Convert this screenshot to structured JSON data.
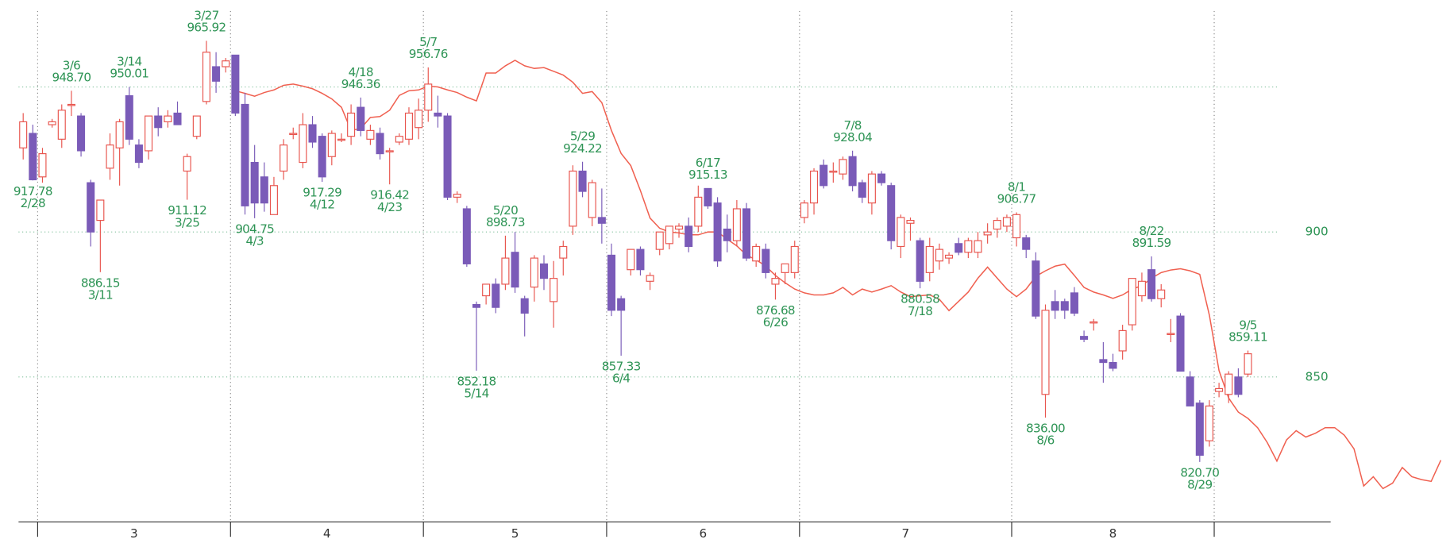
{
  "chart_data": {
    "type": "candlestick",
    "up_color": "#e8554e",
    "down_color": "#7a5bb8",
    "line_color": "#f06050",
    "annotation_color": "#2e9455",
    "ylim": [
      800,
      980
    ],
    "yticks": [
      850,
      900
    ],
    "gridlines": [
      850,
      900,
      950
    ],
    "categories": [
      "3",
      "4",
      "5",
      "6",
      "7",
      "8"
    ],
    "candles": [
      [
        929,
        941,
        925,
        938
      ],
      [
        934,
        937,
        917.78,
        918
      ],
      [
        919,
        929,
        917,
        927
      ],
      [
        937,
        939,
        936,
        938
      ],
      [
        932,
        944,
        929,
        942
      ],
      [
        944,
        948.7,
        940,
        944
      ],
      [
        940,
        941,
        926,
        928
      ],
      [
        917,
        918,
        895,
        900
      ],
      [
        904,
        911,
        886.15,
        911
      ],
      [
        922,
        934,
        918,
        930
      ],
      [
        929,
        939,
        916,
        938
      ],
      [
        947,
        950.01,
        930,
        932
      ],
      [
        930,
        932,
        922,
        924
      ],
      [
        928,
        940,
        925,
        940
      ],
      [
        940,
        943,
        933,
        936
      ],
      [
        938,
        942,
        936,
        940
      ],
      [
        941,
        945,
        937,
        937
      ],
      [
        921,
        927,
        911.12,
        926
      ],
      [
        933,
        940,
        932,
        940
      ],
      [
        945,
        965.92,
        944,
        962
      ],
      [
        957,
        962,
        948,
        952
      ],
      [
        957,
        960,
        955,
        959
      ],
      [
        961,
        961,
        940,
        941
      ],
      [
        944,
        948,
        906,
        909
      ],
      [
        924,
        930,
        904.75,
        910
      ],
      [
        919,
        924,
        907,
        910
      ],
      [
        906,
        919,
        906,
        916
      ],
      [
        921,
        932,
        918,
        930
      ],
      [
        934,
        936,
        932,
        934
      ],
      [
        924,
        941,
        922,
        937
      ],
      [
        937,
        940,
        929,
        931
      ],
      [
        933,
        934,
        917.29,
        919
      ],
      [
        926,
        935,
        923,
        934
      ],
      [
        932,
        934,
        931,
        932
      ],
      [
        933,
        944,
        930,
        941
      ],
      [
        943,
        946.36,
        933,
        935
      ],
      [
        932,
        937,
        930,
        935
      ],
      [
        934,
        936,
        925,
        927
      ],
      [
        928,
        929,
        916.42,
        928
      ],
      [
        931,
        934,
        930,
        933
      ],
      [
        932,
        943,
        930,
        941
      ],
      [
        936,
        946,
        932,
        942
      ],
      [
        942,
        956.76,
        938,
        951
      ],
      [
        941,
        947,
        936,
        940
      ],
      [
        940,
        941,
        911,
        912
      ],
      [
        912,
        914,
        910,
        913
      ],
      [
        908,
        909,
        888,
        889
      ],
      [
        875,
        876,
        852.18,
        874
      ],
      [
        878,
        882,
        875,
        882
      ],
      [
        882,
        884,
        872,
        874
      ],
      [
        882,
        898.73,
        880,
        891
      ],
      [
        893,
        900,
        879,
        881
      ],
      [
        877,
        878,
        864,
        872
      ],
      [
        881,
        892,
        876,
        891
      ],
      [
        889,
        892,
        880,
        884
      ],
      [
        876,
        890,
        867,
        884
      ],
      [
        891,
        897,
        885,
        895
      ],
      [
        902,
        923,
        899,
        921
      ],
      [
        921,
        924.22,
        912,
        914
      ],
      [
        905,
        918,
        902,
        917
      ],
      [
        905,
        915,
        896,
        903
      ],
      [
        892,
        896,
        871,
        873
      ],
      [
        877,
        878,
        857.33,
        873
      ],
      [
        887,
        894,
        885,
        894
      ],
      [
        894,
        895,
        885,
        887
      ],
      [
        883,
        886,
        880,
        885
      ],
      [
        894,
        900,
        892,
        900
      ],
      [
        896,
        902,
        894,
        902
      ],
      [
        901,
        903,
        898,
        902
      ],
      [
        902,
        905,
        893,
        895
      ],
      [
        902,
        916,
        900,
        912
      ],
      [
        915,
        915.13,
        908,
        909
      ],
      [
        910,
        912,
        888,
        890
      ],
      [
        901,
        906,
        893,
        897
      ],
      [
        897,
        911,
        895,
        908
      ],
      [
        908,
        910,
        890,
        891
      ],
      [
        890,
        896,
        888,
        895
      ],
      [
        894,
        896,
        884,
        886
      ],
      [
        882,
        886,
        876.68,
        884
      ],
      [
        886,
        889,
        882,
        889
      ],
      [
        886,
        897,
        884,
        895
      ],
      [
        905,
        911,
        903,
        910
      ],
      [
        910,
        922,
        906,
        921
      ],
      [
        923,
        925,
        915,
        916
      ],
      [
        921,
        924,
        917,
        921
      ],
      [
        920,
        926,
        918,
        925
      ],
      [
        926,
        928.04,
        914,
        916
      ],
      [
        917,
        918,
        910,
        912
      ],
      [
        910,
        921,
        906,
        920
      ],
      [
        920,
        921,
        916,
        917
      ],
      [
        916,
        917,
        894,
        897
      ],
      [
        895,
        906,
        891,
        905
      ],
      [
        903,
        905,
        897,
        904
      ],
      [
        897,
        898,
        880.58,
        883
      ],
      [
        886,
        898,
        883,
        895
      ],
      [
        890,
        896,
        887,
        894
      ],
      [
        891,
        893,
        889,
        892
      ],
      [
        896,
        898,
        892,
        893
      ],
      [
        893,
        898,
        891,
        897
      ],
      [
        893,
        900,
        891,
        897
      ],
      [
        899,
        903,
        896,
        900
      ],
      [
        901,
        905,
        898,
        904
      ],
      [
        902,
        906,
        900,
        905
      ],
      [
        898,
        906.77,
        895,
        906
      ],
      [
        898,
        899,
        891,
        894
      ],
      [
        890,
        893,
        870,
        871
      ],
      [
        844,
        875,
        836,
        873
      ],
      [
        876,
        880,
        870,
        873
      ],
      [
        876,
        877,
        870,
        873
      ],
      [
        879,
        881,
        871,
        872
      ],
      [
        864,
        866,
        862,
        863
      ],
      [
        869,
        870,
        866,
        869
      ],
      [
        856,
        862,
        848,
        855
      ],
      [
        855,
        858,
        852,
        853
      ],
      [
        859,
        868,
        856,
        866
      ],
      [
        868,
        884,
        866,
        884
      ],
      [
        878,
        886,
        876,
        883
      ],
      [
        887,
        891.59,
        876,
        877
      ],
      [
        877,
        882,
        874,
        880
      ],
      [
        865,
        870,
        862,
        865
      ],
      [
        871,
        872,
        852,
        852
      ],
      [
        850,
        852,
        840,
        840
      ],
      [
        841,
        842,
        820.7,
        823
      ],
      [
        828,
        842,
        826,
        840
      ],
      [
        845,
        848,
        843,
        846
      ],
      [
        844,
        852,
        841,
        851
      ],
      [
        850,
        853,
        843,
        844
      ],
      [
        851,
        859.11,
        850,
        858
      ]
    ],
    "line": [
      null,
      null,
      null,
      null,
      null,
      null,
      null,
      null,
      null,
      null,
      null,
      null,
      null,
      null,
      null,
      null,
      null,
      null,
      null,
      null,
      null,
      null,
      948.7,
      947.8,
      946.8,
      948.1,
      949.0,
      950.6,
      951.0,
      950.3,
      949.4,
      947.8,
      945.9,
      943.0,
      935.0,
      935.7,
      939.5,
      939.8,
      942.0,
      947.1,
      948.7,
      949.0,
      950.3,
      950.0,
      949.0,
      948.1,
      946.5,
      945.2,
      954.8,
      954.8,
      957.3,
      959.2,
      957.3,
      956.4,
      956.7,
      955.4,
      954.1,
      951.6,
      947.8,
      948.4,
      944.6,
      935.0,
      927.1,
      922.9,
      914.3,
      904.8,
      901.3,
      900.0,
      899.7,
      899.0,
      899.0,
      900.0,
      900.0,
      897.5,
      895.2,
      892.0,
      890.4,
      888.2,
      885.0,
      882.5,
      880.3,
      879.0,
      878.3,
      878.3,
      879.0,
      880.9,
      878.3,
      880.3,
      879.3,
      880.3,
      881.5,
      879.3,
      877.7,
      878.0,
      878.3,
      876.8,
      872.9,
      876.1,
      879.3,
      884.1,
      887.9,
      884.1,
      880.3,
      877.7,
      880.3,
      884.7,
      886.6,
      888.2,
      888.9,
      885.0,
      880.9,
      879.3,
      878.3,
      877.1,
      878.3,
      880.3,
      881.5,
      884.1,
      886.0,
      886.9,
      887.3,
      886.6,
      885.4,
      871.3,
      852.2,
      842.7,
      837.9,
      835.7,
      832.5,
      827.4,
      821.0,
      828.3,
      831.5,
      829.3,
      830.6,
      832.5,
      832.5,
      829.9,
      825.2,
      812.4,
      815.6,
      811.5,
      813.4,
      818.8,
      815.6,
      814.6,
      814.0,
      821.3
    ],
    "annotations": [
      {
        "date": "2/28",
        "value": 917.78
      },
      {
        "date": "3/6",
        "value": 948.7,
        "label": "948.70"
      },
      {
        "date": "3/11",
        "value": 886.15
      },
      {
        "date": "3/14",
        "value": 950.01
      },
      {
        "date": "3/25",
        "value": 911.12
      },
      {
        "date": "3/27",
        "value": 965.92
      },
      {
        "date": "4/3",
        "value": 904.75
      },
      {
        "date": "4/12",
        "value": 917.29
      },
      {
        "date": "4/18",
        "value": 946.36
      },
      {
        "date": "4/23",
        "value": 916.42
      },
      {
        "date": "5/7",
        "value": 956.76
      },
      {
        "date": "5/14",
        "value": 852.18
      },
      {
        "date": "5/20",
        "value": 898.73
      },
      {
        "date": "5/29",
        "value": 924.22
      },
      {
        "date": "6/4",
        "value": 857.33
      },
      {
        "date": "6/17",
        "value": 915.13
      },
      {
        "date": "6/26",
        "value": 876.68
      },
      {
        "date": "7/8",
        "value": 928.04
      },
      {
        "date": "7/18",
        "value": 880.58
      },
      {
        "date": "8/1",
        "value": 906.77
      },
      {
        "date": "8/6",
        "value": 836,
        "label": "836.00"
      },
      {
        "date": "8/22",
        "value": 891.59
      },
      {
        "date": "8/29",
        "value": 820.7,
        "label": "820.70"
      },
      {
        "date": "9/5",
        "value": 859.11
      }
    ]
  }
}
